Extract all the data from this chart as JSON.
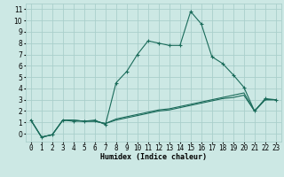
{
  "title": "",
  "xlabel": "Humidex (Indice chaleur)",
  "bg_color": "#cce8e4",
  "grid_color": "#aacfcb",
  "line_color": "#1a6b5a",
  "x_ticks": [
    0,
    1,
    2,
    3,
    4,
    5,
    6,
    7,
    8,
    9,
    10,
    11,
    12,
    13,
    14,
    15,
    16,
    17,
    18,
    19,
    20,
    21,
    22,
    23
  ],
  "ylim": [
    -0.7,
    11.5
  ],
  "xlim": [
    -0.5,
    23.5
  ],
  "series": [
    {
      "x": [
        0,
        1,
        2,
        3,
        4,
        5,
        6,
        7,
        8,
        9,
        10,
        11,
        12,
        13,
        14,
        15,
        16,
        17,
        18,
        19,
        20,
        21,
        22,
        23
      ],
      "y": [
        1.2,
        -0.3,
        -0.1,
        1.2,
        1.1,
        1.1,
        1.2,
        0.8,
        4.5,
        5.5,
        7.0,
        8.2,
        8.0,
        7.8,
        7.8,
        10.8,
        9.7,
        6.8,
        6.2,
        5.2,
        4.1,
        2.0,
        3.1,
        3.0
      ]
    },
    {
      "x": [
        0,
        1,
        2,
        3,
        4,
        5,
        6,
        7,
        8,
        9,
        10,
        11,
        12,
        13,
        14,
        15,
        16,
        17,
        18,
        19,
        20,
        21,
        22,
        23
      ],
      "y": [
        1.2,
        -0.3,
        -0.1,
        1.2,
        1.2,
        1.1,
        1.1,
        0.9,
        1.3,
        1.5,
        1.7,
        1.9,
        2.1,
        2.2,
        2.4,
        2.6,
        2.8,
        3.0,
        3.2,
        3.4,
        3.6,
        2.0,
        3.0,
        3.0
      ]
    },
    {
      "x": [
        0,
        1,
        2,
        3,
        4,
        5,
        6,
        7,
        8,
        9,
        10,
        11,
        12,
        13,
        14,
        15,
        16,
        17,
        18,
        19,
        20,
        21,
        22,
        23
      ],
      "y": [
        1.2,
        -0.3,
        -0.1,
        1.2,
        1.2,
        1.1,
        1.1,
        0.9,
        1.2,
        1.4,
        1.6,
        1.8,
        2.0,
        2.1,
        2.3,
        2.5,
        2.7,
        2.9,
        3.1,
        3.2,
        3.4,
        2.0,
        3.0,
        3.0
      ]
    }
  ]
}
